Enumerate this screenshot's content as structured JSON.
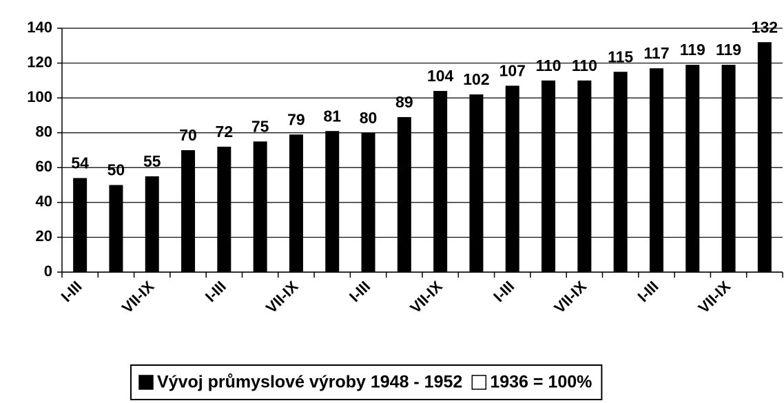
{
  "chart_data": {
    "type": "bar",
    "categories": [
      "I-III",
      null,
      "VII-IX",
      null,
      "I-III",
      null,
      "VII-IX",
      null,
      "I-III",
      null,
      "VII-IX",
      null,
      "I-III",
      null,
      "VII-IX",
      null,
      "I-III",
      null,
      "VII-IX",
      null
    ],
    "series": [
      {
        "name": "Vývoj průmyslové výroby 1948 - 1952",
        "color": "#000000",
        "values": [
          54,
          50,
          55,
          70,
          72,
          75,
          79,
          81,
          80,
          89,
          104,
          102,
          107,
          110,
          110,
          115,
          117,
          119,
          119,
          132
        ]
      },
      {
        "name": "1936 = 100%",
        "color": "#ffffff",
        "values": [
          null,
          null,
          null,
          null,
          null,
          null,
          null,
          null,
          null,
          null,
          null,
          null,
          null,
          null,
          null,
          null,
          null,
          null,
          null,
          null
        ]
      }
    ],
    "ylim": [
      0,
      140
    ],
    "yticks": [
      0,
      20,
      40,
      60,
      80,
      100,
      120,
      140
    ],
    "grid": true
  }
}
